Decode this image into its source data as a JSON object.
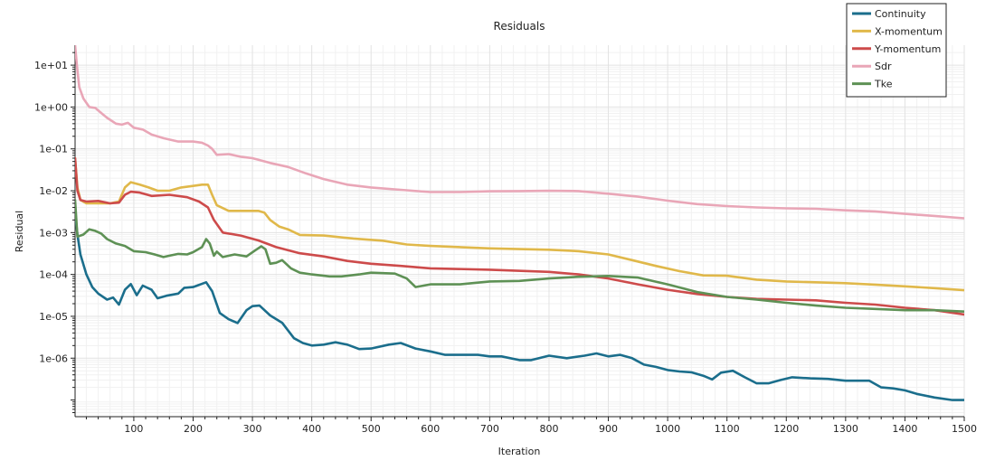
{
  "chart_data": {
    "type": "line",
    "title": "Residuals",
    "xlabel": "Iteration",
    "ylabel": "Residual",
    "xlim": [
      1,
      1500
    ],
    "ylim": [
      4e-08,
      30
    ],
    "yscale": "log",
    "grid": true,
    "legend_position": "top-right",
    "x_ticks": [
      100,
      200,
      300,
      400,
      500,
      600,
      700,
      800,
      900,
      1000,
      1100,
      1200,
      1300,
      1400,
      1500
    ],
    "y_ticks": [
      1e-06,
      1e-05,
      0.0001,
      0.001,
      0.01,
      0.1,
      1,
      10
    ],
    "y_tick_labels": [
      "1e-06",
      "1e-05",
      "1e-04",
      "1e-03",
      "1e-02",
      "1e-01",
      "1e+00",
      "1e+01"
    ],
    "series": [
      {
        "name": "Continuity",
        "color": "#1b6e8c",
        "points": [
          [
            1,
            0.003
          ],
          [
            5,
            0.0009
          ],
          [
            10,
            0.0003
          ],
          [
            20,
            0.0001
          ],
          [
            30,
            5e-05
          ],
          [
            40,
            3.5e-05
          ],
          [
            55,
            2.5e-05
          ],
          [
            65,
            2.8e-05
          ],
          [
            75,
            1.9e-05
          ],
          [
            85,
            4.3e-05
          ],
          [
            95,
            5.9e-05
          ],
          [
            105,
            3.2e-05
          ],
          [
            115,
            5.4e-05
          ],
          [
            130,
            4.3e-05
          ],
          [
            140,
            2.7e-05
          ],
          [
            155,
            3.1e-05
          ],
          [
            175,
            3.5e-05
          ],
          [
            185,
            4.8e-05
          ],
          [
            200,
            5e-05
          ],
          [
            222,
            6.5e-05
          ],
          [
            232,
            4e-05
          ],
          [
            245,
            1.2e-05
          ],
          [
            260,
            8.5e-06
          ],
          [
            275,
            6.9e-06
          ],
          [
            290,
            1.4e-05
          ],
          [
            300,
            1.75e-05
          ],
          [
            312,
            1.8e-05
          ],
          [
            330,
            1.05e-05
          ],
          [
            350,
            7e-06
          ],
          [
            370,
            3e-06
          ],
          [
            385,
            2.3e-06
          ],
          [
            400,
            2e-06
          ],
          [
            420,
            2.1e-06
          ],
          [
            440,
            2.4e-06
          ],
          [
            460,
            2.1e-06
          ],
          [
            480,
            1.65e-06
          ],
          [
            500,
            1.7e-06
          ],
          [
            530,
            2.1e-06
          ],
          [
            550,
            2.3e-06
          ],
          [
            575,
            1.7e-06
          ],
          [
            600,
            1.45e-06
          ],
          [
            625,
            1.2e-06
          ],
          [
            650,
            1.2e-06
          ],
          [
            680,
            1.2e-06
          ],
          [
            700,
            1.1e-06
          ],
          [
            720,
            1.1e-06
          ],
          [
            750,
            9e-07
          ],
          [
            770,
            9e-07
          ],
          [
            800,
            1.15e-06
          ],
          [
            830,
            1e-06
          ],
          [
            860,
            1.15e-06
          ],
          [
            880,
            1.3e-06
          ],
          [
            900,
            1.1e-06
          ],
          [
            920,
            1.2e-06
          ],
          [
            940,
            1e-06
          ],
          [
            960,
            7e-07
          ],
          [
            980,
            6.2e-07
          ],
          [
            1000,
            5.2e-07
          ],
          [
            1020,
            4.8e-07
          ],
          [
            1040,
            4.6e-07
          ],
          [
            1060,
            3.8e-07
          ],
          [
            1075,
            3.1e-07
          ],
          [
            1090,
            4.5e-07
          ],
          [
            1110,
            5e-07
          ],
          [
            1130,
            3.5e-07
          ],
          [
            1150,
            2.5e-07
          ],
          [
            1170,
            2.5e-07
          ],
          [
            1190,
            3e-07
          ],
          [
            1210,
            3.5e-07
          ],
          [
            1240,
            3.3e-07
          ],
          [
            1270,
            3.2e-07
          ],
          [
            1300,
            2.9e-07
          ],
          [
            1340,
            2.9e-07
          ],
          [
            1360,
            2e-07
          ],
          [
            1380,
            1.9e-07
          ],
          [
            1400,
            1.7e-07
          ],
          [
            1420,
            1.4e-07
          ],
          [
            1450,
            1.15e-07
          ],
          [
            1480,
            1e-07
          ],
          [
            1500,
            1e-07
          ]
        ]
      },
      {
        "name": "X-momentum",
        "color": "#e0b84a",
        "points": [
          [
            1,
            0.06
          ],
          [
            5,
            0.012
          ],
          [
            10,
            0.006
          ],
          [
            20,
            0.005
          ],
          [
            40,
            0.005
          ],
          [
            60,
            0.005
          ],
          [
            75,
            0.0055
          ],
          [
            85,
            0.012
          ],
          [
            95,
            0.016
          ],
          [
            110,
            0.014
          ],
          [
            125,
            0.012
          ],
          [
            140,
            0.01
          ],
          [
            160,
            0.01
          ],
          [
            180,
            0.012
          ],
          [
            200,
            0.013
          ],
          [
            215,
            0.014
          ],
          [
            225,
            0.014
          ],
          [
            232,
            0.008
          ],
          [
            240,
            0.0045
          ],
          [
            260,
            0.0033
          ],
          [
            280,
            0.0033
          ],
          [
            310,
            0.0033
          ],
          [
            320,
            0.003
          ],
          [
            330,
            0.002
          ],
          [
            345,
            0.0014
          ],
          [
            360,
            0.0012
          ],
          [
            380,
            0.00088
          ],
          [
            420,
            0.00085
          ],
          [
            470,
            0.00072
          ],
          [
            520,
            0.00064
          ],
          [
            560,
            0.00052
          ],
          [
            600,
            0.00048
          ],
          [
            700,
            0.00042
          ],
          [
            800,
            0.00039
          ],
          [
            850,
            0.00036
          ],
          [
            900,
            0.0003
          ],
          [
            940,
            0.00022
          ],
          [
            980,
            0.00016
          ],
          [
            1020,
            0.00012
          ],
          [
            1060,
            9.5e-05
          ],
          [
            1100,
            9.3e-05
          ],
          [
            1150,
            7.5e-05
          ],
          [
            1200,
            6.8e-05
          ],
          [
            1300,
            6.2e-05
          ],
          [
            1350,
            5.7e-05
          ],
          [
            1400,
            5.2e-05
          ],
          [
            1450,
            4.7e-05
          ],
          [
            1500,
            4.2e-05
          ]
        ]
      },
      {
        "name": "Y-momentum",
        "color": "#cd4b4b",
        "points": [
          [
            1,
            0.06
          ],
          [
            5,
            0.01
          ],
          [
            10,
            0.006
          ],
          [
            20,
            0.0055
          ],
          [
            40,
            0.0057
          ],
          [
            60,
            0.005
          ],
          [
            75,
            0.0052
          ],
          [
            85,
            0.008
          ],
          [
            95,
            0.0095
          ],
          [
            110,
            0.009
          ],
          [
            130,
            0.0075
          ],
          [
            160,
            0.008
          ],
          [
            190,
            0.007
          ],
          [
            210,
            0.0055
          ],
          [
            225,
            0.004
          ],
          [
            235,
            0.002
          ],
          [
            250,
            0.001
          ],
          [
            280,
            0.00085
          ],
          [
            310,
            0.00065
          ],
          [
            340,
            0.00045
          ],
          [
            380,
            0.00032
          ],
          [
            420,
            0.00027
          ],
          [
            460,
            0.00021
          ],
          [
            500,
            0.00018
          ],
          [
            550,
            0.00016
          ],
          [
            600,
            0.00014
          ],
          [
            700,
            0.00013
          ],
          [
            800,
            0.000115
          ],
          [
            850,
            0.0001
          ],
          [
            900,
            8e-05
          ],
          [
            950,
            5.8e-05
          ],
          [
            1000,
            4.3e-05
          ],
          [
            1050,
            3.4e-05
          ],
          [
            1100,
            2.9e-05
          ],
          [
            1150,
            2.6e-05
          ],
          [
            1200,
            2.5e-05
          ],
          [
            1250,
            2.4e-05
          ],
          [
            1300,
            2.1e-05
          ],
          [
            1350,
            1.9e-05
          ],
          [
            1400,
            1.6e-05
          ],
          [
            1450,
            1.4e-05
          ],
          [
            1500,
            1.1e-05
          ]
        ]
      },
      {
        "name": "Sdr",
        "color": "#e9a6b7",
        "points": [
          [
            1,
            30
          ],
          [
            4,
            10
          ],
          [
            8,
            3
          ],
          [
            15,
            1.6
          ],
          [
            25,
            1
          ],
          [
            35,
            0.95
          ],
          [
            45,
            0.72
          ],
          [
            55,
            0.55
          ],
          [
            70,
            0.4
          ],
          [
            80,
            0.38
          ],
          [
            90,
            0.42
          ],
          [
            100,
            0.32
          ],
          [
            115,
            0.29
          ],
          [
            130,
            0.22
          ],
          [
            150,
            0.18
          ],
          [
            175,
            0.15
          ],
          [
            200,
            0.15
          ],
          [
            215,
            0.14
          ],
          [
            225,
            0.12
          ],
          [
            232,
            0.1
          ],
          [
            240,
            0.072
          ],
          [
            260,
            0.075
          ],
          [
            280,
            0.065
          ],
          [
            300,
            0.06
          ],
          [
            330,
            0.046
          ],
          [
            360,
            0.037
          ],
          [
            390,
            0.026
          ],
          [
            420,
            0.019
          ],
          [
            460,
            0.014
          ],
          [
            500,
            0.012
          ],
          [
            550,
            0.0105
          ],
          [
            600,
            0.0093
          ],
          [
            650,
            0.0093
          ],
          [
            700,
            0.0097
          ],
          [
            750,
            0.0098
          ],
          [
            800,
            0.01
          ],
          [
            850,
            0.0098
          ],
          [
            900,
            0.0085
          ],
          [
            950,
            0.0072
          ],
          [
            1000,
            0.0058
          ],
          [
            1050,
            0.0048
          ],
          [
            1100,
            0.0043
          ],
          [
            1150,
            0.004
          ],
          [
            1200,
            0.0038
          ],
          [
            1250,
            0.0037
          ],
          [
            1300,
            0.0034
          ],
          [
            1350,
            0.0032
          ],
          [
            1400,
            0.0028
          ],
          [
            1450,
            0.0025
          ],
          [
            1500,
            0.0022
          ]
        ]
      },
      {
        "name": "Tke",
        "color": "#5e9155",
        "points": [
          [
            1,
            0.006
          ],
          [
            5,
            0.0008
          ],
          [
            15,
            0.0009
          ],
          [
            25,
            0.0012
          ],
          [
            35,
            0.0011
          ],
          [
            45,
            0.00095
          ],
          [
            55,
            0.0007
          ],
          [
            70,
            0.00055
          ],
          [
            85,
            0.00048
          ],
          [
            100,
            0.00036
          ],
          [
            120,
            0.00034
          ],
          [
            135,
            0.0003
          ],
          [
            150,
            0.00026
          ],
          [
            160,
            0.00028
          ],
          [
            175,
            0.00031
          ],
          [
            190,
            0.0003
          ],
          [
            200,
            0.00034
          ],
          [
            215,
            0.00045
          ],
          [
            222,
            0.0007
          ],
          [
            228,
            0.00055
          ],
          [
            235,
            0.00028
          ],
          [
            240,
            0.00035
          ],
          [
            250,
            0.00026
          ],
          [
            270,
            0.0003
          ],
          [
            290,
            0.00027
          ],
          [
            305,
            0.00038
          ],
          [
            315,
            0.00047
          ],
          [
            322,
            0.0004
          ],
          [
            330,
            0.00018
          ],
          [
            340,
            0.00019
          ],
          [
            350,
            0.00022
          ],
          [
            365,
            0.00014
          ],
          [
            380,
            0.00011
          ],
          [
            400,
            0.0001
          ],
          [
            430,
            9e-05
          ],
          [
            450,
            9e-05
          ],
          [
            480,
            0.0001
          ],
          [
            500,
            0.00011
          ],
          [
            540,
            0.000105
          ],
          [
            560,
            8e-05
          ],
          [
            575,
            5e-05
          ],
          [
            600,
            5.8e-05
          ],
          [
            650,
            5.8e-05
          ],
          [
            700,
            6.8e-05
          ],
          [
            750,
            7e-05
          ],
          [
            800,
            8e-05
          ],
          [
            850,
            8.8e-05
          ],
          [
            900,
            9.2e-05
          ],
          [
            950,
            8.4e-05
          ],
          [
            1000,
            5.8e-05
          ],
          [
            1050,
            3.8e-05
          ],
          [
            1100,
            2.9e-05
          ],
          [
            1150,
            2.5e-05
          ],
          [
            1200,
            2.1e-05
          ],
          [
            1250,
            1.8e-05
          ],
          [
            1300,
            1.6e-05
          ],
          [
            1350,
            1.5e-05
          ],
          [
            1400,
            1.4e-05
          ],
          [
            1450,
            1.4e-05
          ],
          [
            1500,
            1.3e-05
          ]
        ]
      }
    ]
  }
}
